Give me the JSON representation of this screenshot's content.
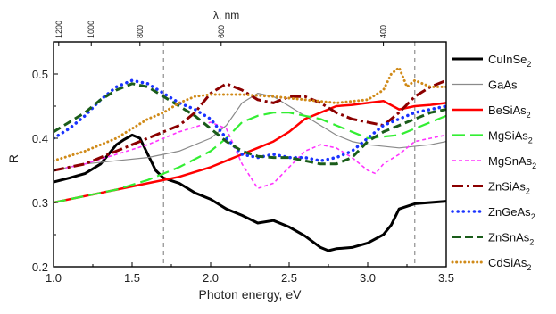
{
  "chart_data": {
    "type": "line",
    "xlabel": "Photon energy, eV",
    "ylabel": "R",
    "top_xlabel": "λ, nm",
    "xlim": [
      1.0,
      3.5
    ],
    "ylim": [
      0.2,
      0.55
    ],
    "x_ticks": [
      1.0,
      1.5,
      2.0,
      2.5,
      3.0,
      3.5
    ],
    "x_tick_labels": [
      "1.0",
      "1.5",
      "2.0",
      "2.5",
      "3.0",
      "3.5"
    ],
    "y_ticks": [
      0.2,
      0.3,
      0.4,
      0.5
    ],
    "y_tick_labels": [
      "0.2",
      "0.3",
      "0.4",
      "0.5"
    ],
    "top_ticks": [
      {
        "label": "1200",
        "energy": 1.033
      },
      {
        "label": "1000",
        "energy": 1.24
      },
      {
        "label": "800",
        "energy": 1.55
      },
      {
        "label": "600",
        "energy": 2.067
      },
      {
        "label": "400",
        "energy": 3.1
      }
    ],
    "vlines": [
      1.7,
      3.3
    ],
    "series": [
      {
        "name": "CuInSe",
        "sub": "2",
        "color": "#000000",
        "style": "solid",
        "width": 3,
        "x": [
          1.0,
          1.1,
          1.2,
          1.3,
          1.35,
          1.4,
          1.45,
          1.5,
          1.55,
          1.6,
          1.65,
          1.7,
          1.8,
          1.9,
          2.0,
          2.1,
          2.2,
          2.3,
          2.4,
          2.5,
          2.6,
          2.7,
          2.75,
          2.8,
          2.9,
          3.0,
          3.1,
          3.15,
          3.2,
          3.3,
          3.4,
          3.5
        ],
        "y": [
          0.332,
          0.338,
          0.345,
          0.36,
          0.375,
          0.39,
          0.398,
          0.405,
          0.4,
          0.375,
          0.35,
          0.338,
          0.33,
          0.315,
          0.305,
          0.29,
          0.28,
          0.268,
          0.272,
          0.262,
          0.248,
          0.23,
          0.225,
          0.228,
          0.23,
          0.237,
          0.25,
          0.265,
          0.29,
          0.298,
          0.3,
          0.302
        ]
      },
      {
        "name": "GaAs",
        "sub": "",
        "color": "#8a8a8a",
        "style": "solid",
        "width": 1.2,
        "x": [
          1.0,
          1.2,
          1.4,
          1.6,
          1.8,
          2.0,
          2.1,
          2.2,
          2.3,
          2.4,
          2.5,
          2.6,
          2.7,
          2.8,
          2.9,
          3.0,
          3.2,
          3.4,
          3.5
        ],
        "y": [
          0.35,
          0.36,
          0.365,
          0.37,
          0.38,
          0.4,
          0.42,
          0.455,
          0.47,
          0.465,
          0.45,
          0.435,
          0.42,
          0.405,
          0.395,
          0.39,
          0.385,
          0.39,
          0.395
        ]
      },
      {
        "name": "BeSiAs",
        "sub": "2",
        "color": "#ff0000",
        "style": "solid",
        "width": 2.5,
        "x": [
          1.0,
          1.2,
          1.4,
          1.6,
          1.8,
          2.0,
          2.2,
          2.3,
          2.4,
          2.5,
          2.6,
          2.7,
          2.8,
          2.9,
          3.0,
          3.1,
          3.2,
          3.3,
          3.4,
          3.5
        ],
        "y": [
          0.3,
          0.31,
          0.32,
          0.33,
          0.34,
          0.355,
          0.375,
          0.385,
          0.395,
          0.41,
          0.43,
          0.44,
          0.45,
          0.452,
          0.455,
          0.458,
          0.445,
          0.45,
          0.452,
          0.455
        ]
      },
      {
        "name": "MgSiAs",
        "sub": "2",
        "color": "#33ee33",
        "style": "longdash",
        "width": 2.2,
        "x": [
          1.0,
          1.2,
          1.4,
          1.6,
          1.8,
          2.0,
          2.1,
          2.2,
          2.3,
          2.4,
          2.5,
          2.6,
          2.7,
          2.8,
          2.9,
          3.0,
          3.2,
          3.4,
          3.5
        ],
        "y": [
          0.3,
          0.31,
          0.32,
          0.335,
          0.355,
          0.38,
          0.4,
          0.425,
          0.435,
          0.44,
          0.44,
          0.435,
          0.43,
          0.42,
          0.41,
          0.4,
          0.405,
          0.425,
          0.435
        ]
      },
      {
        "name": "MgSnAs",
        "sub": "2",
        "color": "#ff33ff",
        "style": "shortdash",
        "width": 1.6,
        "x": [
          1.0,
          1.2,
          1.4,
          1.6,
          1.8,
          2.0,
          2.1,
          2.2,
          2.3,
          2.4,
          2.5,
          2.6,
          2.7,
          2.8,
          2.9,
          3.0,
          3.05,
          3.1,
          3.2,
          3.3,
          3.4,
          3.5
        ],
        "y": [
          0.35,
          0.36,
          0.375,
          0.39,
          0.41,
          0.425,
          0.415,
          0.36,
          0.322,
          0.33,
          0.355,
          0.38,
          0.39,
          0.385,
          0.37,
          0.35,
          0.345,
          0.36,
          0.375,
          0.395,
          0.4,
          0.405
        ]
      },
      {
        "name": "ZnSiAs",
        "sub": "2",
        "color": "#8b0000",
        "style": "dashdot",
        "width": 3,
        "x": [
          1.0,
          1.2,
          1.4,
          1.6,
          1.8,
          1.9,
          2.0,
          2.1,
          2.2,
          2.3,
          2.4,
          2.5,
          2.6,
          2.7,
          2.8,
          2.9,
          3.0,
          3.1,
          3.2,
          3.3,
          3.4,
          3.5
        ],
        "y": [
          0.35,
          0.36,
          0.38,
          0.4,
          0.42,
          0.44,
          0.47,
          0.485,
          0.475,
          0.46,
          0.455,
          0.465,
          0.465,
          0.455,
          0.44,
          0.43,
          0.425,
          0.42,
          0.44,
          0.465,
          0.48,
          0.49
        ]
      },
      {
        "name": "ZnGeAs",
        "sub": "2",
        "color": "#1a33ff",
        "style": "dotted",
        "width": 3.5,
        "x": [
          1.0,
          1.1,
          1.2,
          1.3,
          1.4,
          1.5,
          1.6,
          1.7,
          1.8,
          1.9,
          2.0,
          2.1,
          2.2,
          2.3,
          2.4,
          2.5,
          2.6,
          2.7,
          2.8,
          2.9,
          3.0,
          3.1,
          3.2,
          3.3,
          3.4,
          3.5
        ],
        "y": [
          0.4,
          0.415,
          0.435,
          0.46,
          0.48,
          0.49,
          0.485,
          0.47,
          0.455,
          0.445,
          0.43,
          0.4,
          0.375,
          0.37,
          0.375,
          0.37,
          0.37,
          0.365,
          0.37,
          0.38,
          0.4,
          0.42,
          0.43,
          0.44,
          0.445,
          0.45
        ]
      },
      {
        "name": "ZnSnAs",
        "sub": "2",
        "color": "#1a5c1a",
        "style": "mediumdash",
        "width": 3,
        "x": [
          1.0,
          1.1,
          1.2,
          1.3,
          1.4,
          1.5,
          1.6,
          1.7,
          1.8,
          1.9,
          2.0,
          2.1,
          2.2,
          2.3,
          2.4,
          2.5,
          2.6,
          2.7,
          2.8,
          2.9,
          3.0,
          3.1,
          3.2,
          3.3,
          3.4,
          3.5
        ],
        "y": [
          0.41,
          0.425,
          0.44,
          0.46,
          0.475,
          0.485,
          0.48,
          0.465,
          0.45,
          0.435,
          0.415,
          0.395,
          0.38,
          0.372,
          0.37,
          0.37,
          0.365,
          0.36,
          0.36,
          0.37,
          0.395,
          0.41,
          0.42,
          0.43,
          0.44,
          0.445
        ]
      },
      {
        "name": "CdSiAs",
        "sub": "2",
        "color": "#d08a18",
        "style": "finedotted",
        "width": 3,
        "x": [
          1.0,
          1.2,
          1.4,
          1.6,
          1.7,
          1.8,
          1.9,
          2.0,
          2.2,
          2.4,
          2.6,
          2.8,
          3.0,
          3.1,
          3.15,
          3.2,
          3.25,
          3.3,
          3.4,
          3.5
        ],
        "y": [
          0.365,
          0.38,
          0.4,
          0.43,
          0.44,
          0.455,
          0.465,
          0.468,
          0.468,
          0.465,
          0.46,
          0.455,
          0.46,
          0.475,
          0.5,
          0.51,
          0.48,
          0.49,
          0.48,
          0.48
        ]
      }
    ]
  }
}
